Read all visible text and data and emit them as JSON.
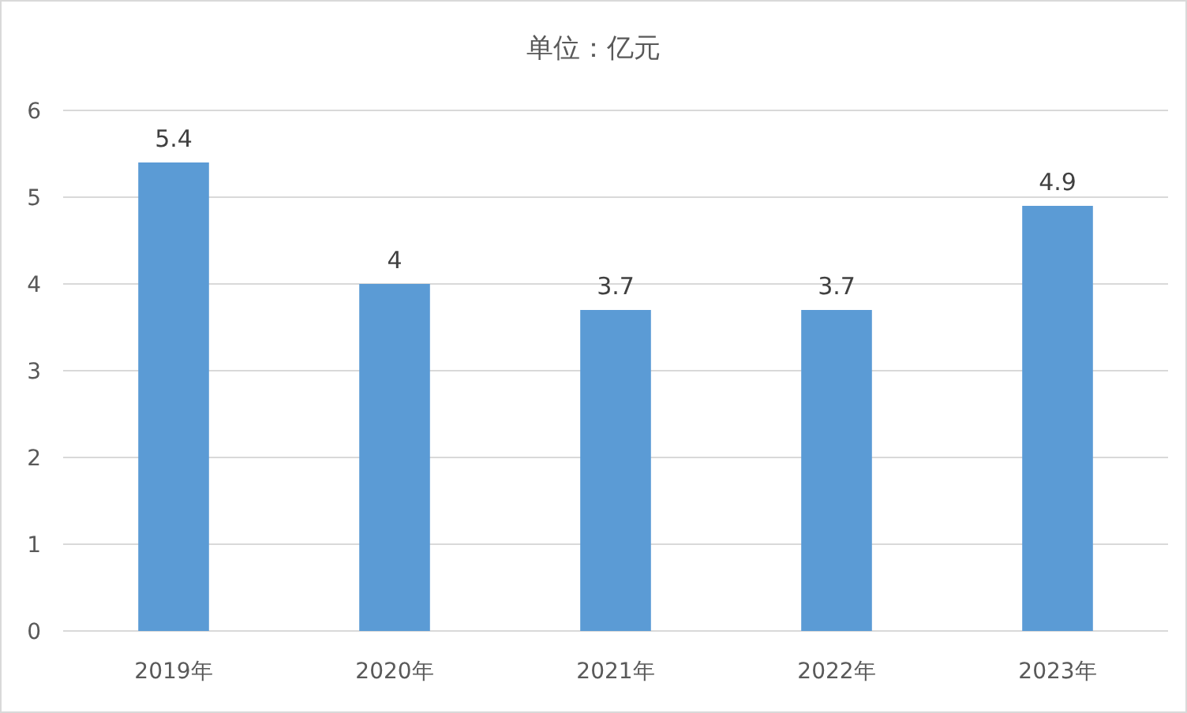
{
  "chart_data": {
    "type": "bar",
    "title": "单位：亿元",
    "categories": [
      "2019年",
      "2020年",
      "2021年",
      "2022年",
      "2023年"
    ],
    "values": [
      5.4,
      4,
      3.7,
      3.7,
      4.9
    ],
    "color": "#5b9bd5",
    "ylim": [
      0,
      6
    ],
    "yticks": [
      0,
      1,
      2,
      3,
      4,
      5,
      6
    ],
    "grid": "y",
    "data_labels": true
  }
}
